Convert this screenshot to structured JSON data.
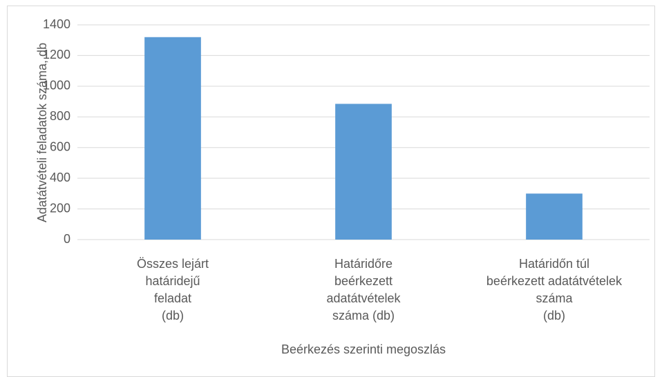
{
  "chart_data": {
    "type": "bar",
    "categories": [
      "Összes lejárt\nhatáridejű\nfeladat\n(db)",
      "Határidőre\nbeérkezett\nadatátvételek\nszáma (db)",
      "Határidőn túl\nbeérkezett adatátvételek\nszáma\n(db)"
    ],
    "values": [
      1320,
      885,
      300
    ],
    "color": "#5b9bd5",
    "xlabel": "Beérkezés szerinti megoszlás",
    "ylabel": "Adatátvételi feladatok száma, db",
    "ylim": [
      0,
      1400
    ],
    "yticks": [
      0,
      200,
      400,
      600,
      800,
      1000,
      1200,
      1400
    ],
    "grid": true
  }
}
